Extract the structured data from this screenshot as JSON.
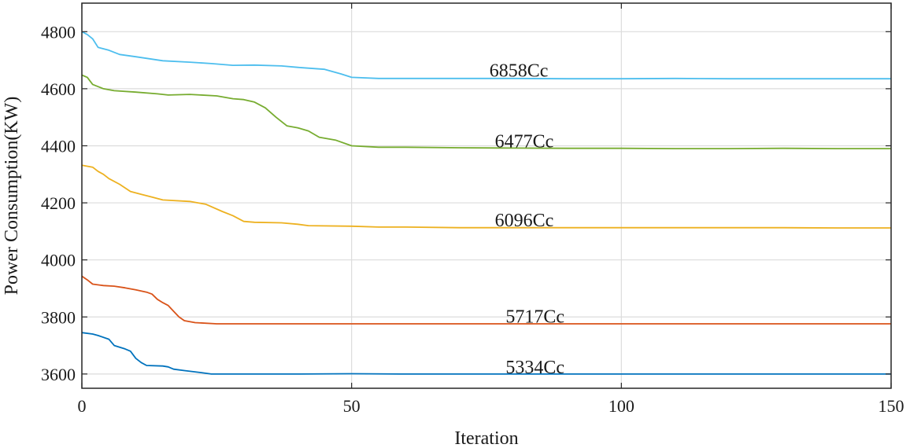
{
  "chart_data": {
    "type": "line",
    "title": "",
    "xlabel": "Iteration",
    "ylabel": "Power Consumption(KW)",
    "xlim": [
      0,
      150
    ],
    "ylim": [
      3550,
      4900
    ],
    "xticks": [
      0,
      50,
      100,
      150
    ],
    "yticks": [
      3600,
      3800,
      4000,
      4200,
      4400,
      4600,
      4800
    ],
    "xtick_labels": [
      "0",
      "50",
      "100",
      "150"
    ],
    "ytick_labels": [
      "3600",
      "3800",
      "4000",
      "4200",
      "4400",
      "4600",
      "4800"
    ],
    "grid": true,
    "legend": "none",
    "series": [
      {
        "name": "6858Cc",
        "color": "#4DBEEE",
        "label_at": [
          81,
          4642
        ],
        "points": [
          [
            0,
            4800
          ],
          [
            1,
            4790
          ],
          [
            2,
            4775
          ],
          [
            3,
            4745
          ],
          [
            5,
            4735
          ],
          [
            7,
            4720
          ],
          [
            10,
            4712
          ],
          [
            15,
            4698
          ],
          [
            20,
            4693
          ],
          [
            24,
            4688
          ],
          [
            28,
            4682
          ],
          [
            32,
            4683
          ],
          [
            37,
            4680
          ],
          [
            40,
            4675
          ],
          [
            45,
            4668
          ],
          [
            48,
            4652
          ],
          [
            50,
            4640
          ],
          [
            55,
            4636
          ],
          [
            60,
            4636
          ],
          [
            70,
            4636
          ],
          [
            80,
            4636
          ],
          [
            90,
            4635
          ],
          [
            100,
            4635
          ],
          [
            110,
            4636
          ],
          [
            120,
            4635
          ],
          [
            130,
            4635
          ],
          [
            140,
            4635
          ],
          [
            150,
            4635
          ]
        ]
      },
      {
        "name": "6477Cc",
        "color": "#77AC30",
        "label_at": [
          82,
          4395
        ],
        "points": [
          [
            0,
            4648
          ],
          [
            1,
            4640
          ],
          [
            2,
            4615
          ],
          [
            4,
            4600
          ],
          [
            6,
            4593
          ],
          [
            10,
            4588
          ],
          [
            14,
            4582
          ],
          [
            16,
            4578
          ],
          [
            20,
            4580
          ],
          [
            25,
            4575
          ],
          [
            28,
            4565
          ],
          [
            30,
            4562
          ],
          [
            32,
            4553
          ],
          [
            34,
            4533
          ],
          [
            36,
            4500
          ],
          [
            38,
            4470
          ],
          [
            40,
            4463
          ],
          [
            42,
            4452
          ],
          [
            44,
            4430
          ],
          [
            47,
            4420
          ],
          [
            50,
            4400
          ],
          [
            55,
            4395
          ],
          [
            60,
            4395
          ],
          [
            70,
            4393
          ],
          [
            80,
            4392
          ],
          [
            90,
            4391
          ],
          [
            100,
            4391
          ],
          [
            110,
            4390
          ],
          [
            120,
            4390
          ],
          [
            130,
            4391
          ],
          [
            140,
            4390
          ],
          [
            150,
            4390
          ]
        ]
      },
      {
        "name": "6096Cc",
        "color": "#EDB120",
        "label_at": [
          82,
          4118
        ],
        "points": [
          [
            0,
            4332
          ],
          [
            2,
            4325
          ],
          [
            3,
            4310
          ],
          [
            4,
            4300
          ],
          [
            5,
            4285
          ],
          [
            7,
            4265
          ],
          [
            9,
            4240
          ],
          [
            11,
            4230
          ],
          [
            13,
            4220
          ],
          [
            15,
            4210
          ],
          [
            20,
            4205
          ],
          [
            23,
            4195
          ],
          [
            26,
            4170
          ],
          [
            28,
            4155
          ],
          [
            30,
            4135
          ],
          [
            32,
            4132
          ],
          [
            37,
            4130
          ],
          [
            40,
            4125
          ],
          [
            42,
            4120
          ],
          [
            50,
            4118
          ],
          [
            55,
            4115
          ],
          [
            60,
            4115
          ],
          [
            70,
            4113
          ],
          [
            80,
            4113
          ],
          [
            90,
            4113
          ],
          [
            100,
            4113
          ],
          [
            110,
            4113
          ],
          [
            120,
            4113
          ],
          [
            130,
            4113
          ],
          [
            140,
            4112
          ],
          [
            150,
            4112
          ]
        ]
      },
      {
        "name": "5717Cc",
        "color": "#D95319",
        "label_at": [
          84,
          3780
        ],
        "points": [
          [
            0,
            3943
          ],
          [
            1,
            3930
          ],
          [
            2,
            3915
          ],
          [
            4,
            3910
          ],
          [
            6,
            3908
          ],
          [
            8,
            3902
          ],
          [
            10,
            3895
          ],
          [
            12,
            3887
          ],
          [
            13,
            3880
          ],
          [
            14,
            3862
          ],
          [
            15,
            3850
          ],
          [
            16,
            3840
          ],
          [
            17,
            3820
          ],
          [
            18,
            3800
          ],
          [
            19,
            3787
          ],
          [
            21,
            3780
          ],
          [
            25,
            3776
          ],
          [
            30,
            3776
          ],
          [
            40,
            3776
          ],
          [
            50,
            3776
          ],
          [
            60,
            3776
          ],
          [
            70,
            3776
          ],
          [
            80,
            3776
          ],
          [
            90,
            3776
          ],
          [
            100,
            3776
          ],
          [
            110,
            3776
          ],
          [
            120,
            3776
          ],
          [
            130,
            3776
          ],
          [
            140,
            3776
          ],
          [
            150,
            3776
          ]
        ]
      },
      {
        "name": "5334Cc",
        "color": "#0072BD",
        "label_at": [
          84,
          3603
        ],
        "points": [
          [
            0,
            3745
          ],
          [
            2,
            3740
          ],
          [
            3,
            3735
          ],
          [
            5,
            3722
          ],
          [
            6,
            3700
          ],
          [
            8,
            3688
          ],
          [
            9,
            3680
          ],
          [
            10,
            3655
          ],
          [
            11,
            3640
          ],
          [
            12,
            3630
          ],
          [
            15,
            3628
          ],
          [
            16,
            3625
          ],
          [
            17,
            3617
          ],
          [
            19,
            3612
          ],
          [
            22,
            3605
          ],
          [
            24,
            3600
          ],
          [
            30,
            3600
          ],
          [
            40,
            3600
          ],
          [
            50,
            3601
          ],
          [
            60,
            3600
          ],
          [
            70,
            3600
          ],
          [
            80,
            3600
          ],
          [
            90,
            3600
          ],
          [
            100,
            3600
          ],
          [
            110,
            3600
          ],
          [
            120,
            3600
          ],
          [
            130,
            3600
          ],
          [
            140,
            3600
          ],
          [
            150,
            3600
          ]
        ]
      }
    ]
  }
}
